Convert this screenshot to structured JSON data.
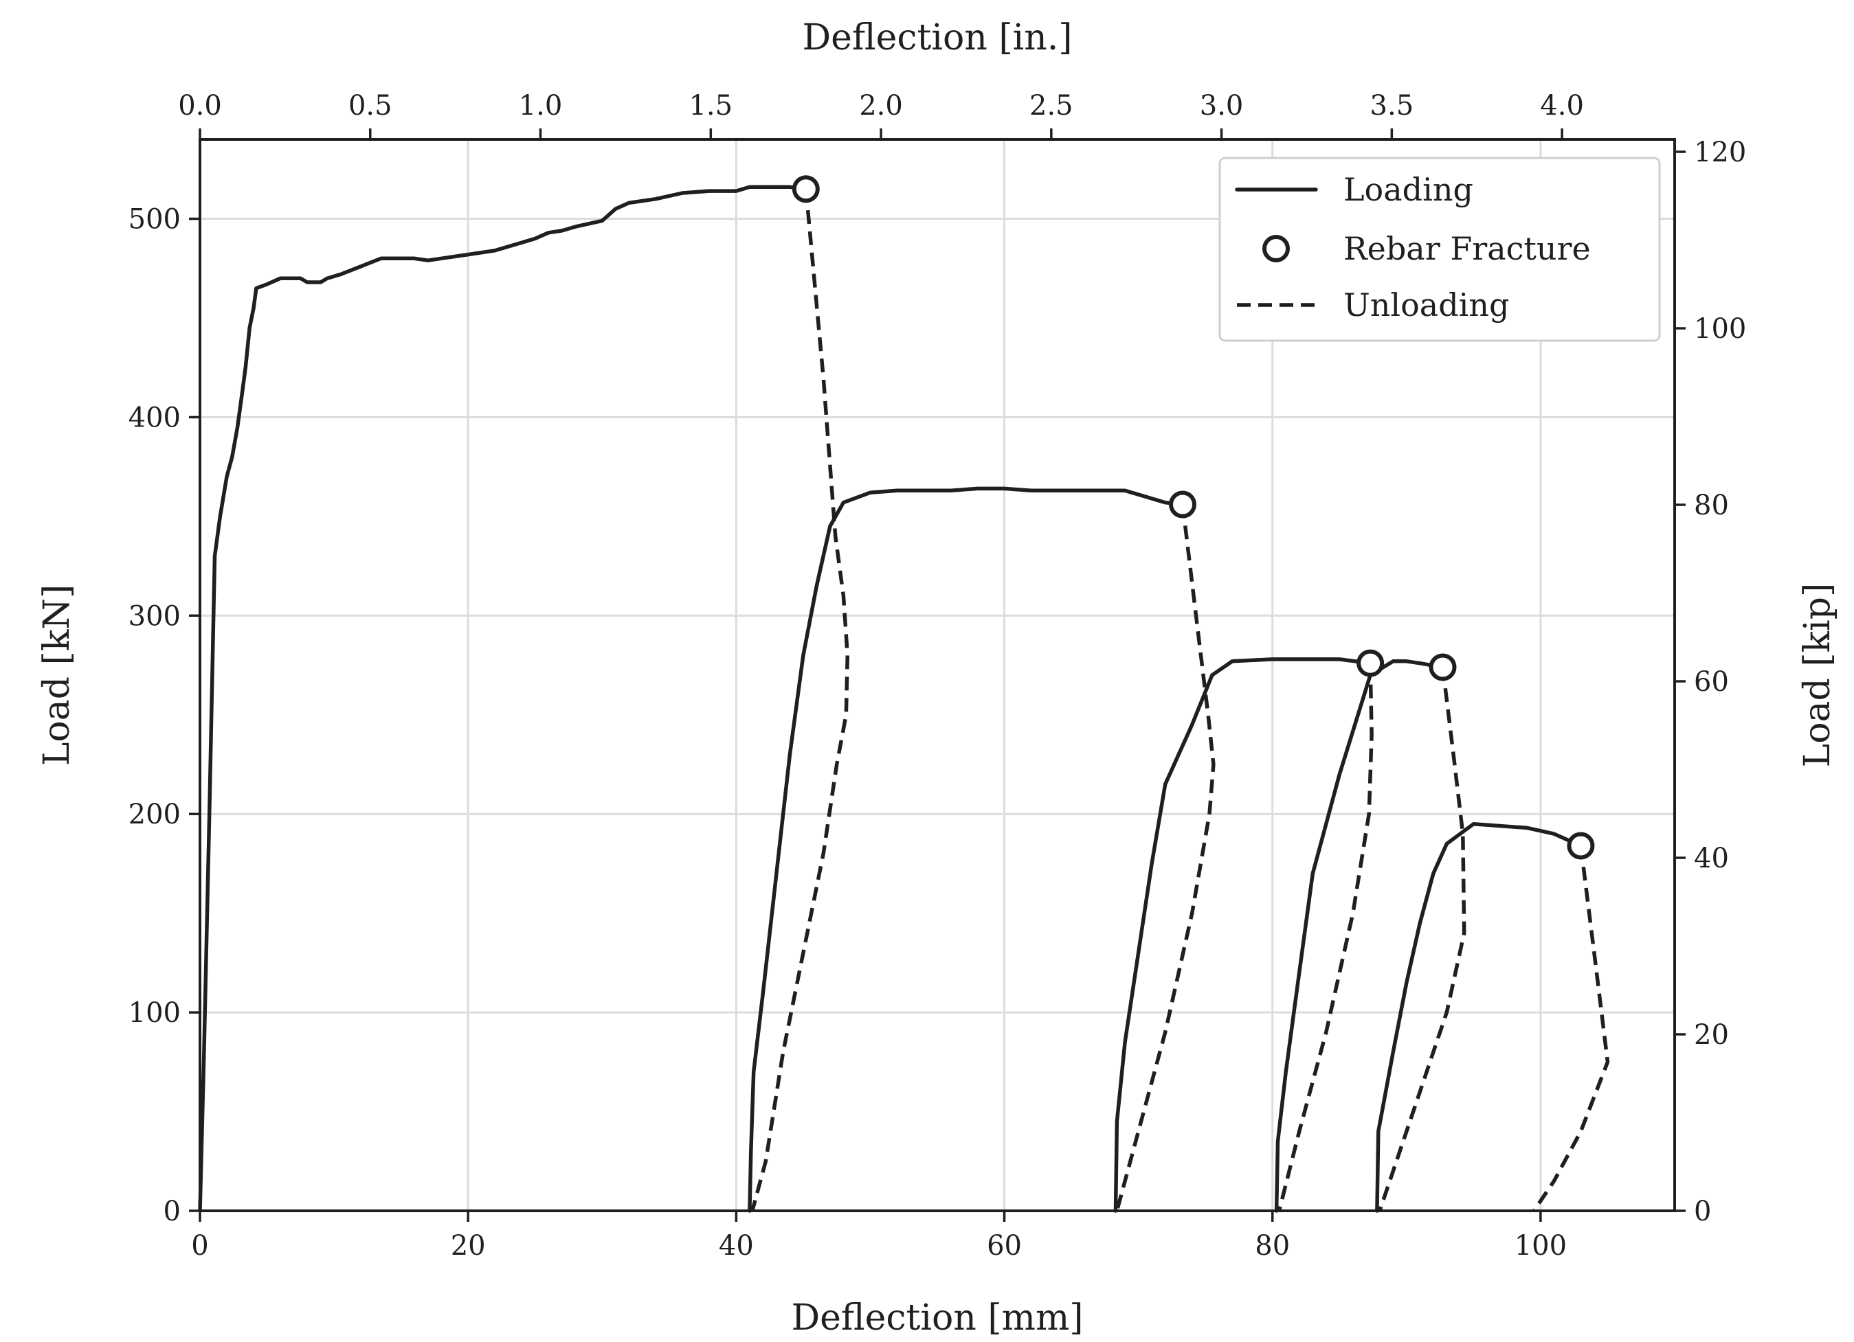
{
  "chart_data": {
    "type": "line",
    "title": "",
    "xlabel": "Deflection [mm]",
    "ylabel": "Load [kN]",
    "xlim": [
      0,
      110
    ],
    "ylim": [
      0,
      540
    ],
    "x_ticks": [
      0,
      20,
      40,
      60,
      80,
      100
    ],
    "y_ticks": [
      0,
      100,
      200,
      300,
      400,
      500
    ],
    "secondary_x": {
      "label": "Deflection [in.]",
      "ticks": [
        "0.0",
        "0.5",
        "1.0",
        "1.5",
        "2.0",
        "2.5",
        "3.0",
        "3.5",
        "4.0"
      ],
      "values_in": [
        0.0,
        0.5,
        1.0,
        1.5,
        2.0,
        2.5,
        3.0,
        3.5,
        4.0
      ],
      "mm_per_unit": 25.4
    },
    "secondary_y": {
      "label": "Load [kip]",
      "ticks": [
        "0",
        "20",
        "40",
        "60",
        "80",
        "100",
        "120"
      ],
      "values_kip": [
        0,
        20,
        40,
        60,
        80,
        100,
        120
      ],
      "kn_per_unit": 4.448
    },
    "grid": true,
    "legend_position": "top-right",
    "legend": [
      {
        "label": "Loading",
        "style": "solid"
      },
      {
        "label": "Rebar Fracture",
        "style": "circle"
      },
      {
        "label": "Unloading",
        "style": "dashed"
      }
    ],
    "series": [
      {
        "name": "Loading",
        "style": "solid",
        "points": [
          [
            0,
            0
          ],
          [
            0.3,
            80
          ],
          [
            0.7,
            200
          ],
          [
            1.1,
            330
          ],
          [
            1.5,
            350
          ],
          [
            2.0,
            370
          ],
          [
            2.4,
            380
          ],
          [
            2.8,
            395
          ],
          [
            3.1,
            410
          ],
          [
            3.4,
            425
          ],
          [
            3.7,
            445
          ],
          [
            4.0,
            455
          ],
          [
            4.2,
            465
          ],
          [
            5.0,
            467
          ],
          [
            6.0,
            470
          ],
          [
            7.5,
            470
          ],
          [
            8.0,
            468
          ],
          [
            9.0,
            468
          ],
          [
            9.5,
            470
          ],
          [
            10.5,
            472
          ],
          [
            12,
            476
          ],
          [
            13.5,
            480
          ],
          [
            16,
            480
          ],
          [
            17,
            479
          ],
          [
            18,
            480
          ],
          [
            20,
            482
          ],
          [
            22,
            484
          ],
          [
            24,
            488
          ],
          [
            25,
            490
          ],
          [
            26,
            493
          ],
          [
            27,
            494
          ],
          [
            28,
            496
          ],
          [
            30,
            499
          ],
          [
            31,
            505
          ],
          [
            32,
            508
          ],
          [
            34,
            510
          ],
          [
            36,
            513
          ],
          [
            38,
            514
          ],
          [
            40,
            514
          ],
          [
            41,
            516
          ],
          [
            43,
            516
          ],
          [
            44,
            516
          ],
          [
            45.2,
            515
          ]
        ]
      },
      {
        "name": "Unloading",
        "style": "dashed",
        "points": [
          [
            45.2,
            515
          ],
          [
            46.5,
            420
          ],
          [
            47.4,
            340
          ],
          [
            48.0,
            310
          ],
          [
            48.3,
            280
          ],
          [
            48.2,
            250
          ],
          [
            47.5,
            225
          ],
          [
            46.5,
            180
          ],
          [
            45,
            130
          ],
          [
            43.5,
            80
          ],
          [
            42.2,
            25
          ],
          [
            41.2,
            0
          ]
        ]
      },
      {
        "name": "Loading",
        "style": "solid",
        "points": [
          [
            41.0,
            0
          ],
          [
            41.1,
            30
          ],
          [
            41.3,
            70
          ],
          [
            42,
            110
          ],
          [
            43,
            170
          ],
          [
            44,
            230
          ],
          [
            45,
            280
          ],
          [
            46,
            315
          ],
          [
            47,
            345
          ],
          [
            48,
            357
          ],
          [
            50,
            362
          ],
          [
            52,
            363
          ],
          [
            54,
            363
          ],
          [
            56,
            363
          ],
          [
            58,
            364
          ],
          [
            60,
            364
          ],
          [
            62,
            363
          ],
          [
            64,
            363
          ],
          [
            66,
            363
          ],
          [
            68,
            363
          ],
          [
            69,
            363
          ],
          [
            72,
            357
          ],
          [
            73.3,
            356
          ]
        ]
      },
      {
        "name": "Unloading",
        "style": "dashed",
        "points": [
          [
            73.3,
            356
          ],
          [
            74.3,
            300
          ],
          [
            75.2,
            250
          ],
          [
            75.6,
            225
          ],
          [
            75.3,
            200
          ],
          [
            74,
            150
          ],
          [
            72,
            90
          ],
          [
            70,
            40
          ],
          [
            68.4,
            0
          ]
        ]
      },
      {
        "name": "Loading",
        "style": "solid",
        "points": [
          [
            68.3,
            0
          ],
          [
            68.4,
            45
          ],
          [
            69,
            85
          ],
          [
            70,
            130
          ],
          [
            71,
            175
          ],
          [
            72,
            215
          ],
          [
            74,
            245
          ],
          [
            75.5,
            270
          ],
          [
            77,
            277
          ],
          [
            80,
            278
          ],
          [
            84,
            278
          ],
          [
            85,
            278
          ],
          [
            87.3,
            276
          ]
        ]
      },
      {
        "name": "Unloading",
        "style": "dashed",
        "points": [
          [
            87.3,
            276
          ],
          [
            87.4,
            240
          ],
          [
            87.2,
            200
          ],
          [
            86,
            150
          ],
          [
            84,
            90
          ],
          [
            82,
            40
          ],
          [
            80.5,
            0
          ]
        ]
      },
      {
        "name": "Loading",
        "style": "solid",
        "points": [
          [
            80.3,
            0
          ],
          [
            80.4,
            35
          ],
          [
            81,
            70
          ],
          [
            82,
            120
          ],
          [
            83,
            170
          ],
          [
            85,
            220
          ],
          [
            87.3,
            270
          ],
          [
            89,
            277
          ],
          [
            90,
            277
          ],
          [
            91,
            276
          ],
          [
            92.7,
            274
          ]
        ]
      },
      {
        "name": "Unloading",
        "style": "dashed",
        "points": [
          [
            92.7,
            274
          ],
          [
            93.5,
            230
          ],
          [
            94.2,
            190
          ],
          [
            94.3,
            140
          ],
          [
            93,
            100
          ],
          [
            91,
            60
          ],
          [
            89,
            20
          ],
          [
            88,
            0
          ]
        ]
      },
      {
        "name": "Loading",
        "style": "solid",
        "points": [
          [
            87.8,
            0
          ],
          [
            87.9,
            40
          ],
          [
            89,
            80
          ],
          [
            90,
            115
          ],
          [
            91,
            145
          ],
          [
            92,
            170
          ],
          [
            93,
            185
          ],
          [
            94,
            190
          ],
          [
            95,
            195
          ],
          [
            97,
            194
          ],
          [
            99,
            193
          ],
          [
            101,
            190
          ],
          [
            103,
            184
          ]
        ]
      },
      {
        "name": "Unloading",
        "style": "dashed",
        "points": [
          [
            103,
            184
          ],
          [
            104,
            130
          ],
          [
            105,
            75
          ],
          [
            103,
            40
          ],
          [
            101,
            15
          ],
          [
            99.5,
            0
          ]
        ]
      }
    ],
    "rebar_fractures": [
      [
        45.2,
        515
      ],
      [
        73.3,
        356
      ],
      [
        87.3,
        276
      ],
      [
        92.7,
        274
      ],
      [
        103,
        184
      ]
    ]
  }
}
